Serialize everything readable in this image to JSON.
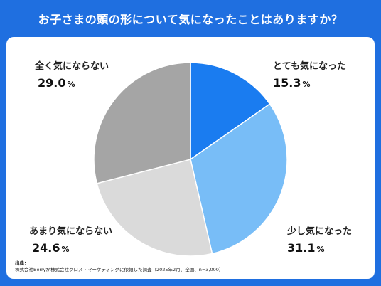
{
  "title": "お子さまの頭の形について気になったことはありますか？",
  "chart_data": {
    "type": "pie",
    "title": "お子さまの頭の形について気になったことはありますか？",
    "unit": "%",
    "slices": [
      {
        "label": "とても気になった",
        "value": 15.3,
        "display": "15.3",
        "color": "#1a7cf0"
      },
      {
        "label": "少し気になった",
        "value": 31.1,
        "display": "31.1",
        "color": "#78bdf7"
      },
      {
        "label": "あまり気にならない",
        "value": 24.6,
        "display": "24.6",
        "color": "#dadada"
      },
      {
        "label": "全く気にならない",
        "value": 29.0,
        "display": "29.0",
        "color": "#a5a5a5"
      }
    ],
    "start_angle": "12 o'clock",
    "direction": "clockwise",
    "legend": "none"
  },
  "source": {
    "title": "出典：",
    "text": "株式会社Berryが株式会社クロス・マーケティングに依頼した調査（2025年2月、全国、n=3,000）"
  }
}
